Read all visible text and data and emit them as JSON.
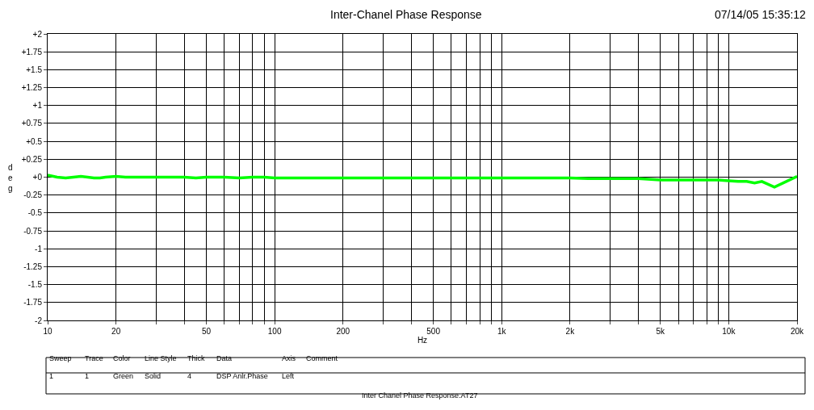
{
  "chart_data": {
    "type": "line",
    "title": "Inter-Chanel Phase Response",
    "xlabel": "Hz",
    "ylabel": "deg",
    "log": "x",
    "grid": true,
    "marker": "none",
    "line_style": "solid",
    "x": [
      10,
      11,
      12,
      13,
      14,
      15,
      16,
      17,
      18,
      20,
      22,
      25,
      30,
      35,
      40,
      45,
      50,
      60,
      70,
      80,
      90,
      100,
      200,
      500,
      1000,
      2000,
      2400,
      3000,
      4000,
      5000,
      6000,
      7000,
      8000,
      9000,
      10000,
      11000,
      12000,
      13000,
      14000,
      15900,
      20000
    ],
    "series": [
      {
        "color": "#00ff00",
        "values": [
          0.03,
          0.0,
          -0.01,
          0.0,
          0.01,
          0.0,
          -0.01,
          -0.01,
          0.0,
          0.01,
          0.0,
          0.0,
          0.0,
          0.0,
          0.0,
          -0.01,
          0.0,
          0.0,
          -0.01,
          0.0,
          0.0,
          -0.01,
          -0.01,
          -0.01,
          -0.01,
          -0.01,
          -0.02,
          -0.02,
          -0.02,
          -0.04,
          -0.04,
          -0.04,
          -0.04,
          -0.04,
          -0.05,
          -0.06,
          -0.06,
          -0.08,
          -0.06,
          -0.14,
          0.01
        ]
      }
    ],
    "xlim": [
      10,
      20000
    ],
    "xticks": [
      10,
      20,
      {
        "value": 30,
        "label": null
      },
      {
        "value": 40,
        "label": null
      },
      50,
      {
        "value": 60,
        "label": null
      },
      {
        "value": 70,
        "label": null
      },
      {
        "value": 80,
        "label": null
      },
      {
        "value": 90,
        "label": null
      },
      100,
      200,
      {
        "value": 300,
        "label": null
      },
      {
        "value": 400,
        "label": null
      },
      500,
      {
        "value": 600,
        "label": null
      },
      {
        "value": 700,
        "label": null
      },
      {
        "value": 800,
        "label": null
      },
      {
        "value": 900,
        "label": null
      },
      {
        "value": 1000,
        "label": "1k"
      },
      {
        "value": 2000,
        "label": "2k"
      },
      {
        "value": 3000,
        "label": null
      },
      {
        "value": 4000,
        "label": null
      },
      {
        "value": 5000,
        "label": "5k"
      },
      {
        "value": 6000,
        "label": null
      },
      {
        "value": 7000,
        "label": null
      },
      {
        "value": 8000,
        "label": null
      },
      {
        "value": 9000,
        "label": null
      },
      {
        "value": 10000,
        "label": "10k"
      },
      {
        "value": 20000,
        "label": "20k"
      }
    ],
    "ylim": [
      -2,
      2
    ],
    "yticks": [
      {
        "value": 2,
        "label": "+2"
      },
      {
        "value": 1.75,
        "label": "+1.75"
      },
      {
        "value": 1.5,
        "label": "+1.5"
      },
      {
        "value": 1.25,
        "label": "+1.25"
      },
      {
        "value": 1,
        "label": "+1"
      },
      {
        "value": 0.75,
        "label": "+0.75"
      },
      {
        "value": 0.5,
        "label": "+0.5"
      },
      {
        "value": 0.25,
        "label": "+0.25"
      },
      {
        "value": 0,
        "label": "+0"
      },
      -0.25,
      -0.5,
      -0.75,
      -1,
      -1.25,
      -1.5,
      -1.75,
      -2
    ],
    "annotations": [
      "07/14/05 15:35:12",
      "Sweep",
      "Trace",
      "Color",
      "Line Style",
      "Thick",
      "Data",
      "Axis",
      "Comment",
      "1",
      "1",
      "Green",
      "Solid",
      "4",
      "DSP Anlr.Phase",
      "Left",
      "Inter Chanel Phase Response.AT27"
    ]
  }
}
